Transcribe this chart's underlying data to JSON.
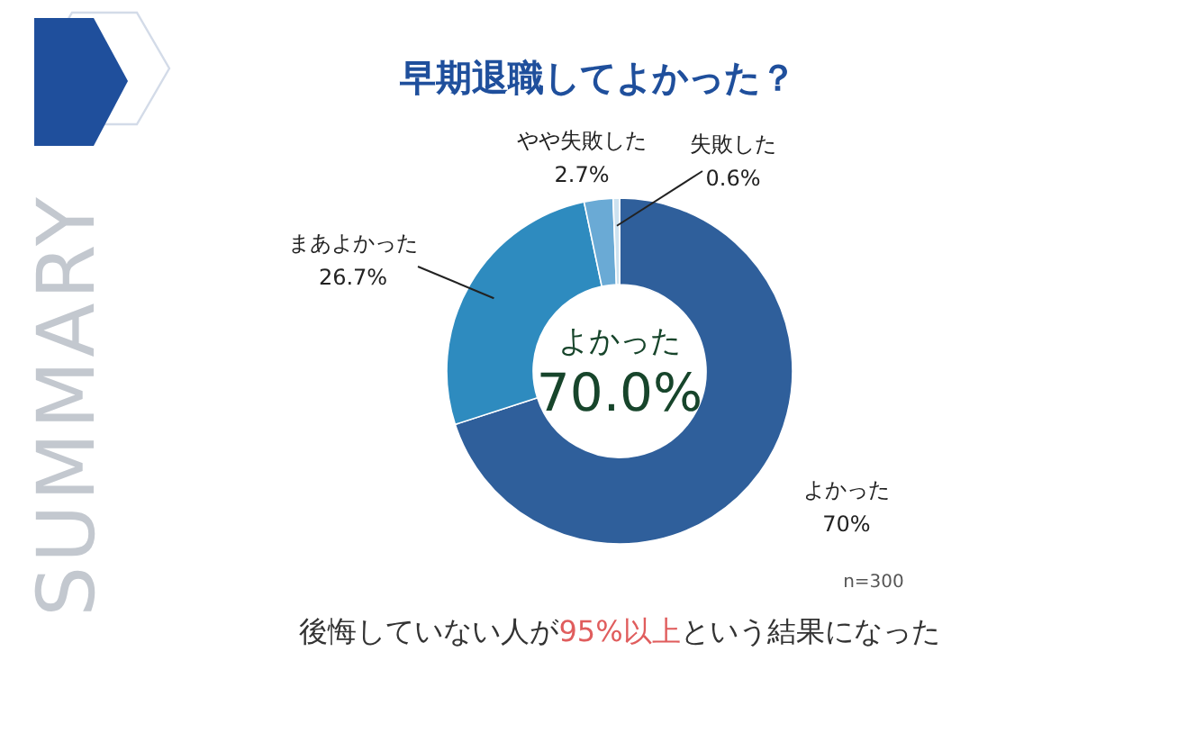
{
  "chart_data": {
    "type": "donut",
    "title": "早期退職してよかった？",
    "categories": [
      "よかった",
      "まあよかった",
      "やや失敗した",
      "失敗した"
    ],
    "values": [
      70,
      26.7,
      2.7,
      0.6
    ],
    "colors": [
      "#2f5f9b",
      "#2e8bbf",
      "#6aaad5",
      "#cde2f0"
    ],
    "value_labels": [
      "70%",
      "26.7%",
      "2.7%",
      "0.6%"
    ],
    "annotations": [
      "よかった",
      "70.0%",
      "n=300",
      "後悔していない人が",
      "95%以上",
      "という結果になった",
      "SUMMARY"
    ]
  }
}
